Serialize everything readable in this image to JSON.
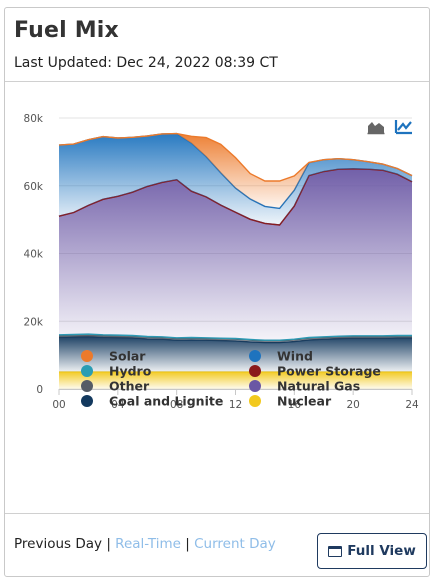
{
  "header": {
    "title": "Fuel Mix",
    "last_updated": "Last Updated: Dec 24, 2022 08:39 CT"
  },
  "footer": {
    "previous_day": "Previous Day",
    "separator": "|",
    "real_time": "Real-Time",
    "current_day": "Current Day",
    "full_view_label": "Full View"
  },
  "toolbar": {
    "stacked_icon": "area-chart-icon",
    "line_icon": "line-chart-icon"
  },
  "chart_data": {
    "type": "area",
    "stacked": true,
    "title": "",
    "xlabel": "",
    "ylabel": "",
    "xlim": [
      0,
      24
    ],
    "ylim": [
      0,
      80000
    ],
    "x_ticks": [
      0,
      4,
      8,
      12,
      16,
      20,
      24
    ],
    "x_tick_labels": [
      "00",
      "04",
      "08",
      "12",
      "16",
      "20",
      "24"
    ],
    "y_ticks": [
      0,
      20000,
      40000,
      60000,
      80000
    ],
    "y_tick_labels": [
      "0",
      "20k",
      "40k",
      "60k",
      "80k"
    ],
    "grid": true,
    "legend_position": "bottom",
    "x": [
      0,
      1,
      2,
      3,
      4,
      5,
      6,
      7,
      8,
      9,
      10,
      11,
      12,
      13,
      14,
      15,
      16,
      17,
      18,
      19,
      20,
      21,
      22,
      23,
      24
    ],
    "series": [
      {
        "name": "Nuclear",
        "color": "#f2c91e",
        "values": [
          5000,
          5000,
          5000,
          5000,
          5000,
          5000,
          5000,
          5000,
          5000,
          5000,
          5000,
          5000,
          5000,
          5000,
          5000,
          5000,
          5000,
          5000,
          5000,
          5000,
          5000,
          5000,
          5000,
          5000,
          5000
        ]
      },
      {
        "name": "Coal and Lignite",
        "color": "#13395e",
        "values": [
          10300,
          10400,
          10500,
          10300,
          10200,
          10100,
          9800,
          9700,
          9400,
          9500,
          9400,
          9300,
          9200,
          8900,
          8700,
          8700,
          9000,
          9500,
          9700,
          9900,
          10000,
          10000,
          10000,
          10100,
          10100
        ]
      },
      {
        "name": "Other",
        "color": "#555c66",
        "values": [
          500,
          500,
          500,
          500,
          500,
          500,
          500,
          500,
          500,
          500,
          500,
          500,
          500,
          500,
          500,
          500,
          500,
          500,
          500,
          500,
          500,
          500,
          500,
          500,
          500
        ]
      },
      {
        "name": "Hydro",
        "color": "#2a9db4",
        "values": [
          200,
          200,
          200,
          200,
          200,
          200,
          200,
          200,
          200,
          200,
          200,
          200,
          200,
          200,
          200,
          200,
          200,
          200,
          200,
          200,
          200,
          200,
          200,
          200,
          200
        ]
      },
      {
        "name": "Natural Gas",
        "color": "#6a57a4",
        "values": [
          35000,
          36000,
          38000,
          40000,
          41000,
          42300,
          44300,
          45600,
          46700,
          43200,
          41600,
          39300,
          37300,
          35500,
          34500,
          34000,
          39300,
          47800,
          48800,
          49300,
          49300,
          49200,
          48900,
          47600,
          45400
        ]
      },
      {
        "name": "Power Storage",
        "color": "#8b1a1a",
        "values": [
          0,
          0,
          0,
          0,
          0,
          0,
          0,
          0,
          0,
          0,
          0,
          0,
          0,
          0,
          0,
          0,
          0,
          0,
          0,
          0,
          0,
          0,
          0,
          0,
          0
        ]
      },
      {
        "name": "Wind",
        "color": "#1e73be",
        "values": [
          21000,
          20200,
          19400,
          18500,
          17200,
          16200,
          14900,
          14300,
          13600,
          14200,
          11900,
          9500,
          7100,
          6000,
          5000,
          4900,
          4700,
          3800,
          3500,
          3100,
          2700,
          2200,
          1800,
          1700,
          1800
        ]
      },
      {
        "name": "Solar",
        "color": "#ec7a2b",
        "values": [
          0,
          0,
          0,
          0,
          0,
          0,
          0,
          0,
          0,
          2000,
          5600,
          8400,
          9000,
          7500,
          7500,
          8100,
          4200,
          100,
          0,
          0,
          0,
          0,
          0,
          0,
          0
        ]
      }
    ]
  }
}
